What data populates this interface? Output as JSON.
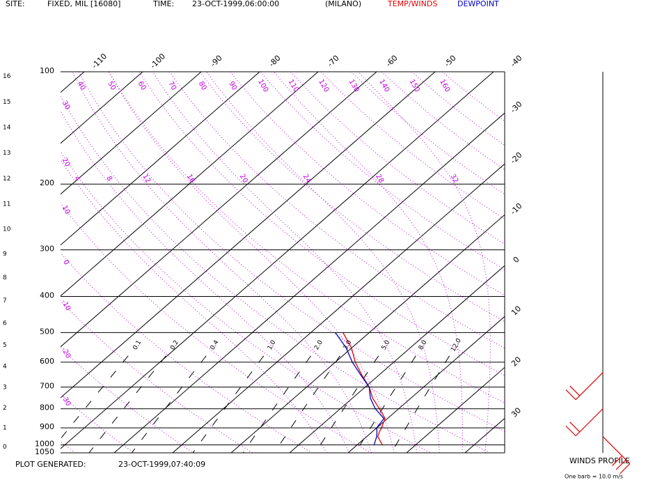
{
  "chart_data": {
    "type": "skewt",
    "header": {
      "site_label": "SITE:",
      "site": "FIXED, MIL [16080]",
      "time_label": "TIME:",
      "time": "23-OCT-1999,06:00:00",
      "station": "(MILANO)"
    },
    "footer": {
      "label": "PLOT GENERATED:",
      "time": "23-OCT-1999,07:40:09"
    },
    "log_y": true,
    "ylim": [
      100,
      1050
    ],
    "yticks": [
      100,
      200,
      300,
      400,
      500,
      600,
      700,
      800,
      900,
      1000,
      1050
    ],
    "height_ticks": [
      0,
      1,
      2,
      3,
      4,
      5,
      6,
      7,
      8,
      9,
      10,
      11,
      12,
      13,
      14,
      15,
      16
    ],
    "isotherms": [
      -110,
      -100,
      -90,
      -80,
      -70,
      -60,
      -50,
      -40,
      -30,
      -20,
      -10,
      0,
      10,
      20,
      30
    ],
    "dry_adiabats": [
      -40,
      -30,
      -20,
      -10,
      0,
      10,
      20,
      30,
      40,
      50,
      60,
      70,
      80,
      90,
      100,
      110,
      120,
      130,
      140,
      150,
      160
    ],
    "moist_adiabats": [
      4,
      8,
      12,
      16,
      20,
      24,
      28,
      32
    ],
    "mixing_ratios": [
      0.1,
      0.2,
      0.4,
      {
        "value": 1.0,
        "label": "1.0"
      },
      {
        "value": 2.0,
        "label": "2.0"
      },
      {
        "value": 3.0,
        "label": "3.0"
      },
      {
        "value": 5.0,
        "label": "5.0"
      },
      {
        "value": 8.0,
        "label": "8.0"
      },
      {
        "value": 12.0,
        "label": "12.0"
      }
    ],
    "pressure": [
      500,
      550,
      600,
      650,
      700,
      750,
      800,
      850,
      900,
      925,
      950,
      1000
    ],
    "series": [
      {
        "name": "TEMP/WINDS",
        "color": "#e00000",
        "values": [
          -14.5,
          -10.0,
          -6.6,
          -2.9,
          0.7,
          3.5,
          6.7,
          9.6,
          10.8,
          11.3,
          11.9,
          14.3
        ]
      },
      {
        "name": "DEWPOINT",
        "color": "#0000c0",
        "values": [
          -15.8,
          -10.9,
          -7.1,
          -3.1,
          0.7,
          3.1,
          6.0,
          9.4,
          10.0,
          10.9,
          11.7,
          12.9
        ]
      }
    ],
    "winds": {
      "title": "WINDS PROFILE",
      "note": "One barb = 10.0 m/s",
      "color": "#e00000",
      "pressure": [
        640,
        800,
        950
      ],
      "direction": [
        225,
        225,
        135
      ],
      "speed": [
        20,
        20,
        30
      ]
    }
  }
}
